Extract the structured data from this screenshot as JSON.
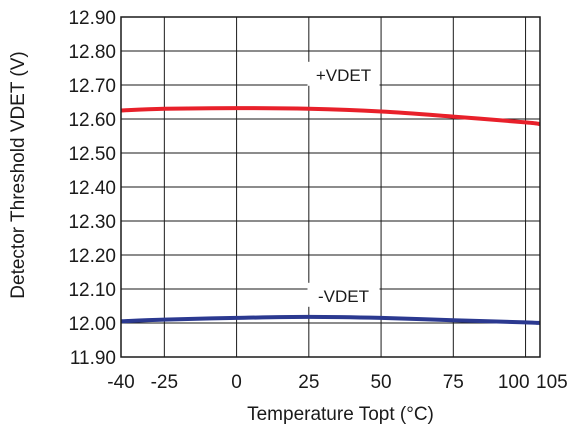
{
  "chart_data": {
    "type": "line",
    "xlabel": "Temperature Topt (°C)",
    "ylabel": "Detector Threshold VDET (V)",
    "x_ticks": [
      -40,
      -25,
      0,
      25,
      50,
      75,
      100,
      105
    ],
    "x_tick_labels": [
      "-40",
      "-25",
      "0",
      "25",
      "50",
      "75",
      "100",
      "105"
    ],
    "y_ticks": [
      11.9,
      12.0,
      12.1,
      12.2,
      12.3,
      12.4,
      12.5,
      12.6,
      12.7,
      12.8,
      12.9
    ],
    "y_tick_labels": [
      "11.90",
      "12.00",
      "12.10",
      "12.20",
      "12.30",
      "12.40",
      "12.50",
      "12.60",
      "12.70",
      "12.80",
      "12.90"
    ],
    "xlim": [
      -40,
      105
    ],
    "ylim": [
      11.9,
      12.9
    ],
    "grid": true,
    "series": [
      {
        "name": "+VDET",
        "color": "#e8202a",
        "label_x": 37,
        "label_y": 12.73,
        "x": [
          -40,
          -25,
          0,
          25,
          50,
          75,
          100,
          105
        ],
        "values": [
          12.625,
          12.63,
          12.632,
          12.63,
          12.622,
          12.607,
          12.59,
          12.585
        ]
      },
      {
        "name": "-VDET",
        "color": "#2b3990",
        "label_x": 37,
        "label_y": 12.08,
        "x": [
          -40,
          -25,
          0,
          25,
          50,
          75,
          100,
          105
        ],
        "values": [
          12.005,
          12.01,
          12.015,
          12.018,
          12.015,
          12.008,
          12.002,
          12.0
        ]
      }
    ]
  }
}
